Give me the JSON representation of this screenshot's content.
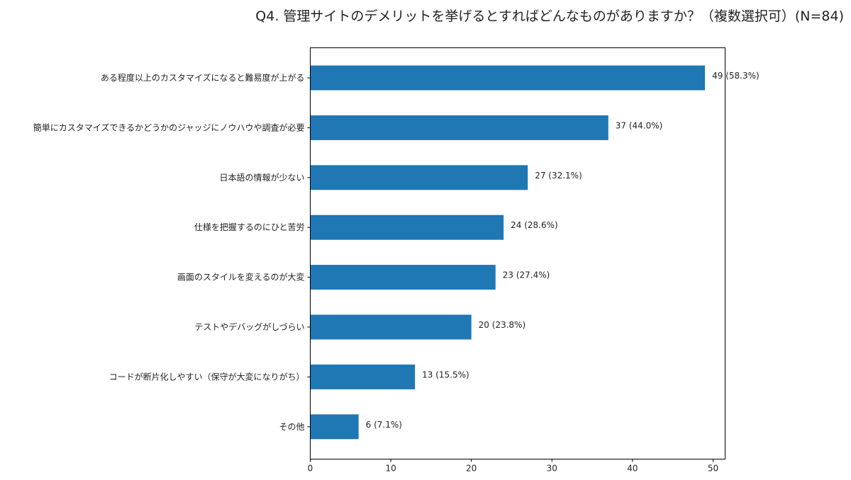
{
  "chart_data": {
    "type": "bar",
    "orientation": "horizontal",
    "title": "Q4.  管理サイトのデメリットを挙げるとすればどんなものがありますか？（複数選択可）(N=84)",
    "categories": [
      "ある程度以上のカスタマイズになると難易度が上がる",
      "簡単にカスタマイズできるかどうかのジャッジにノウハウや調査が必要",
      "日本語の情報が少ない",
      "仕様を把握するのにひと苦労",
      "画面のスタイルを変えるのが大変",
      "テストやデバッグがしづらい",
      "コードが断片化しやすい（保守が大変になりがち）",
      "その他"
    ],
    "values": [
      49,
      37,
      27,
      24,
      23,
      20,
      13,
      6
    ],
    "data_labels": [
      "49 (58.3%)",
      "37 (44.0%)",
      "27 (32.1%)",
      "24 (28.6%)",
      "23 (27.4%)",
      "20 (23.8%)",
      "13 (15.5%)",
      "6 (7.1%)"
    ],
    "xlim": [
      0,
      51.5
    ],
    "xticks": [
      "0",
      "10",
      "20",
      "30",
      "40",
      "50"
    ],
    "xlabel": "",
    "ylabel": "",
    "grid": false,
    "bar_color": "#1f77b4"
  }
}
